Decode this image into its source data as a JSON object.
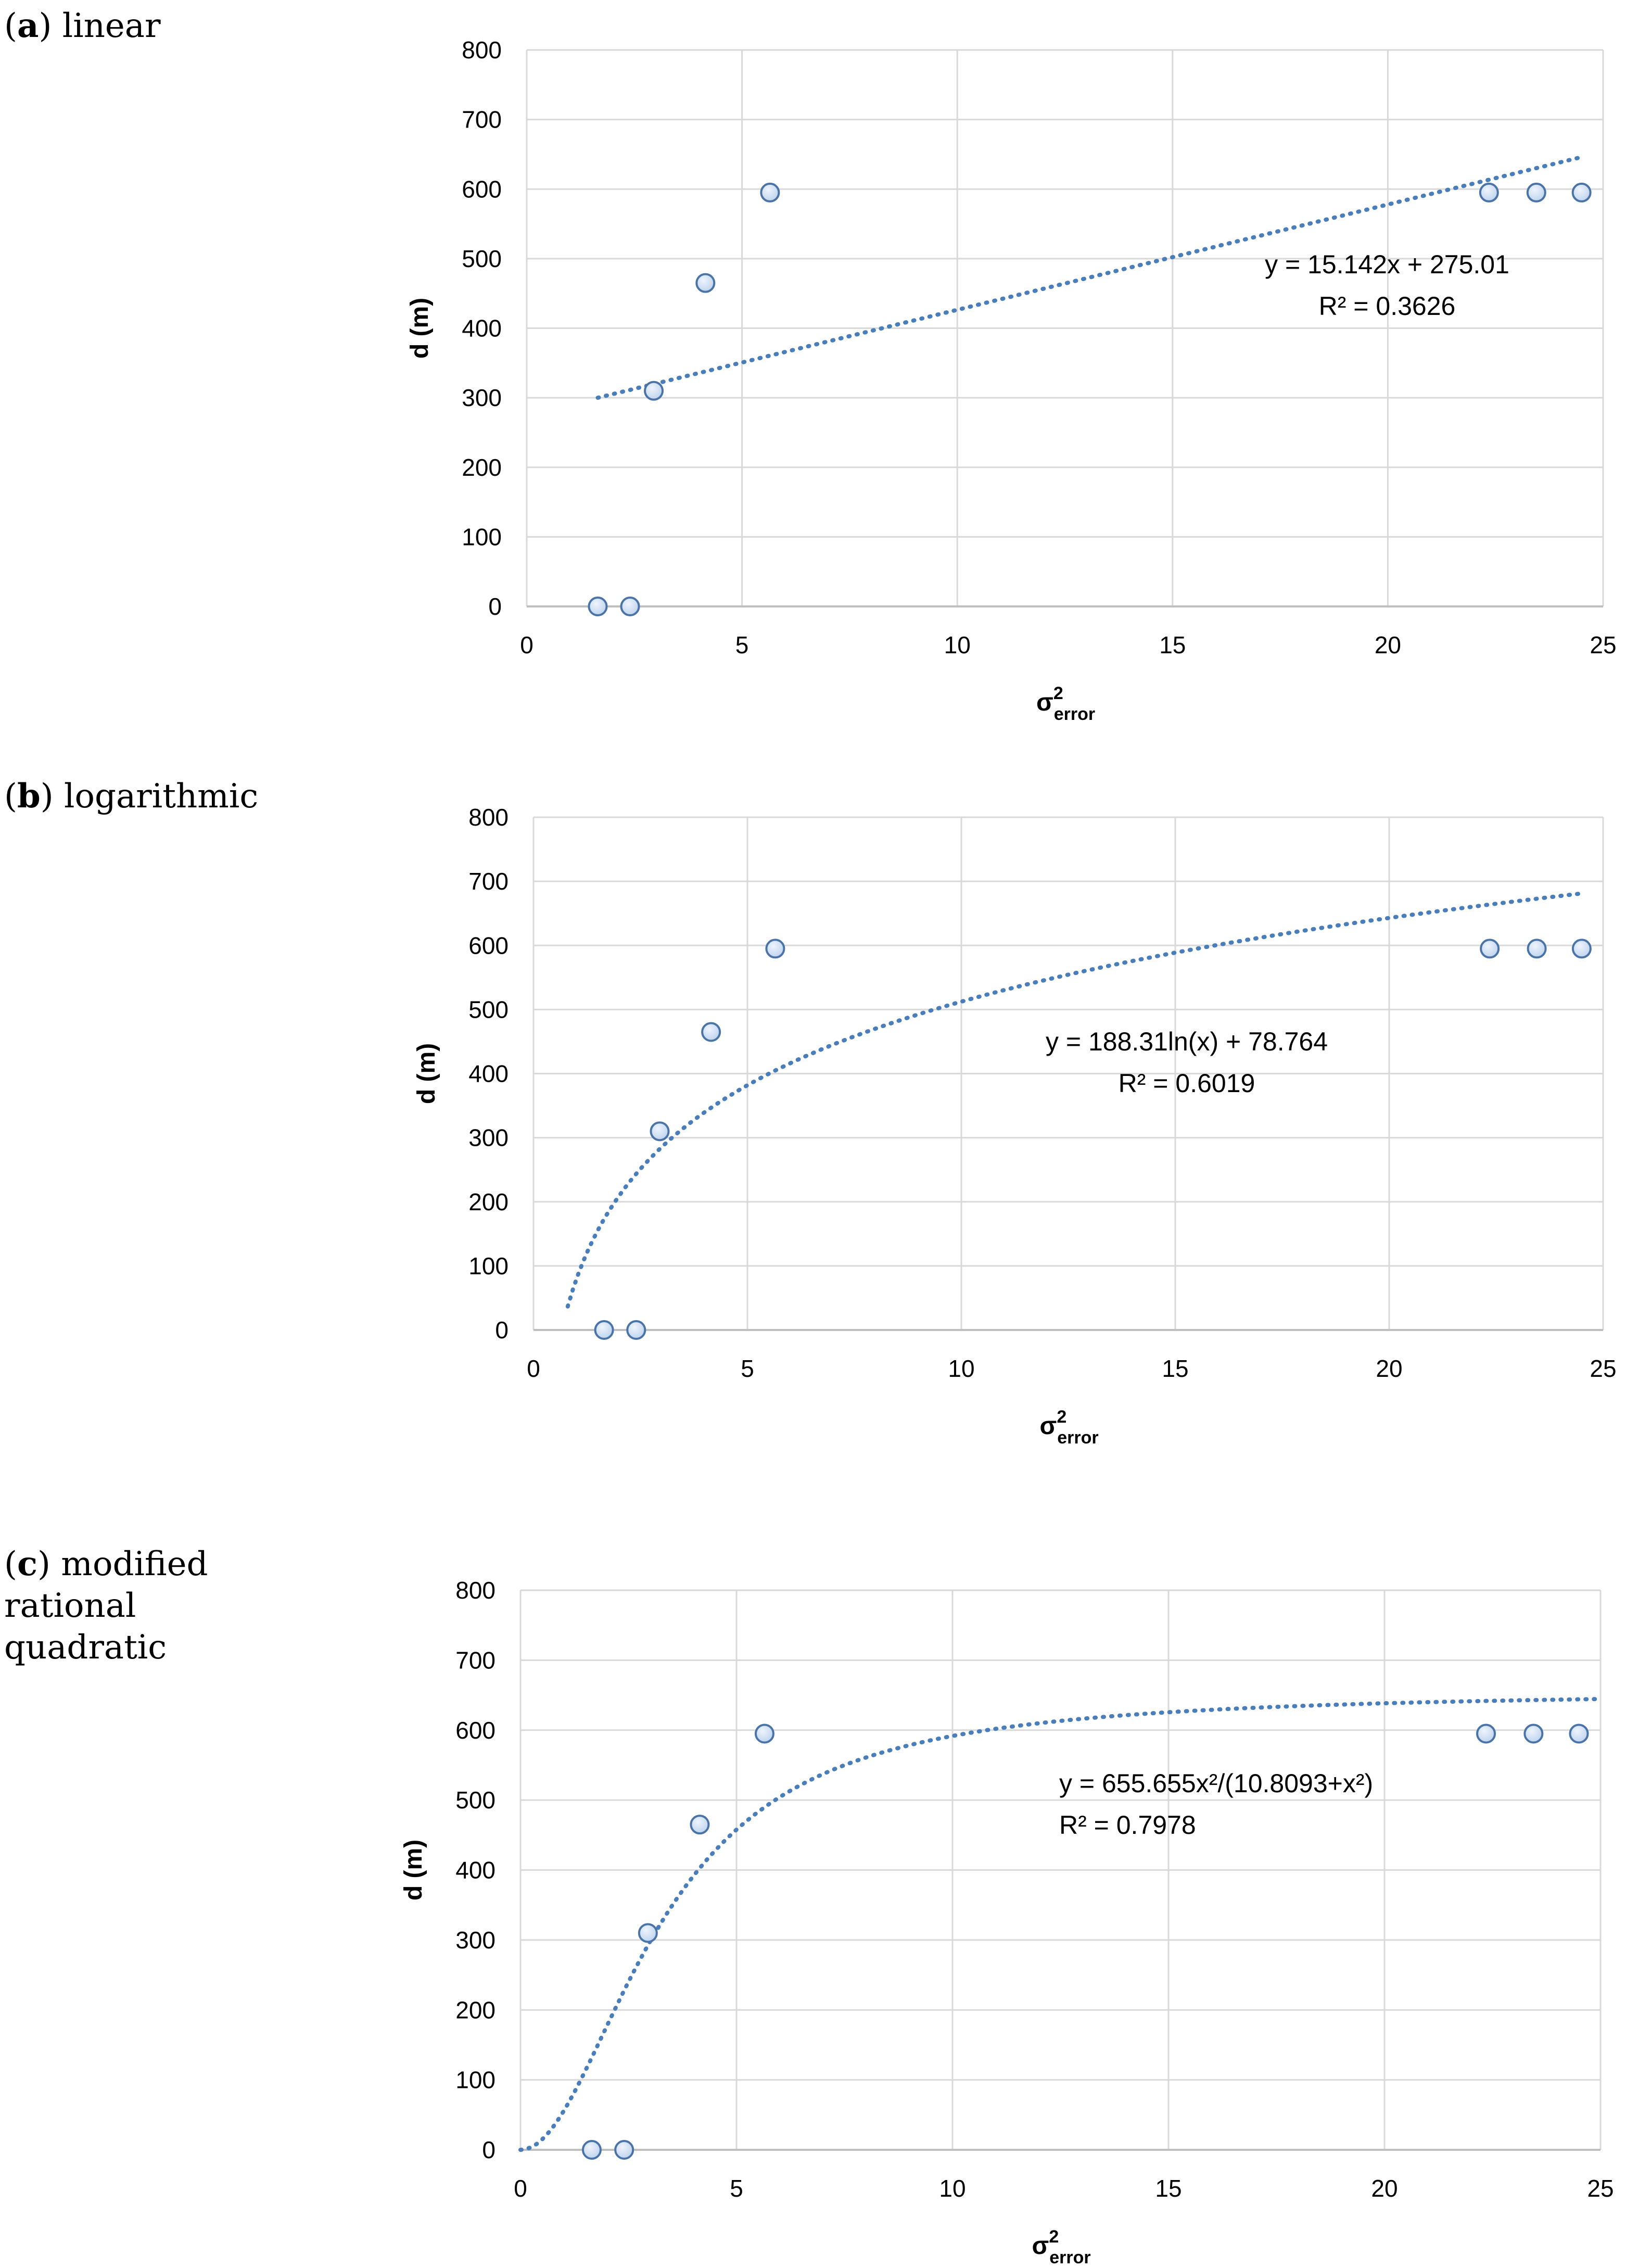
{
  "colors": {
    "grid": "#d9d9d9",
    "axis": "#bfbfbf",
    "trend": "#4a7eba",
    "marker_fill": "#bcd2ee",
    "marker_stroke": "#4a74a8"
  },
  "chart_data": [
    {
      "type": "scatter",
      "panel_letter": "a",
      "panel_title": " linear",
      "xlabel": "σ",
      "xlabel_sup": "2",
      "xlabel_sub": "error",
      "ylabel": "d (m)",
      "xlim": [
        0,
        25
      ],
      "ylim": [
        0,
        800
      ],
      "xticks": [
        0,
        5,
        10,
        15,
        20,
        25
      ],
      "yticks": [
        0,
        100,
        200,
        300,
        400,
        500,
        600,
        700,
        800
      ],
      "points": [
        {
          "x": 1.65,
          "y": 0
        },
        {
          "x": 2.4,
          "y": 0
        },
        {
          "x": 2.95,
          "y": 310
        },
        {
          "x": 4.15,
          "y": 465
        },
        {
          "x": 5.65,
          "y": 595
        },
        {
          "x": 22.35,
          "y": 595
        },
        {
          "x": 23.45,
          "y": 595
        },
        {
          "x": 24.5,
          "y": 595
        }
      ],
      "trendline": {
        "model": "linear",
        "a": 15.142,
        "b": 275.01,
        "x_range": [
          1.65,
          24.5
        ]
      },
      "equation": [
        "y = 15.142x + 275.01",
        "R² = 0.3626"
      ]
    },
    {
      "type": "scatter",
      "panel_letter": "b",
      "panel_title": " logarithmic",
      "xlabel": "σ",
      "xlabel_sup": "2",
      "xlabel_sub": "error",
      "ylabel": "d (m)",
      "xlim": [
        0,
        25
      ],
      "ylim": [
        0,
        800
      ],
      "xticks": [
        0,
        5,
        10,
        15,
        20,
        25
      ],
      "yticks": [
        0,
        100,
        200,
        300,
        400,
        500,
        600,
        700,
        800
      ],
      "points": [
        {
          "x": 1.65,
          "y": 0
        },
        {
          "x": 2.4,
          "y": 0
        },
        {
          "x": 2.95,
          "y": 310
        },
        {
          "x": 4.15,
          "y": 465
        },
        {
          "x": 5.65,
          "y": 595
        },
        {
          "x": 22.35,
          "y": 595
        },
        {
          "x": 23.45,
          "y": 595
        },
        {
          "x": 24.5,
          "y": 595
        }
      ],
      "trendline": {
        "model": "log",
        "a": 188.31,
        "b": 78.764,
        "x_range": [
          0.8,
          24.5
        ]
      },
      "equation": [
        "y = 188.31ln(x) + 78.764",
        "R² = 0.6019"
      ]
    },
    {
      "type": "scatter",
      "panel_letter": "c",
      "panel_title": " modified\nrational\nquadratic",
      "xlabel": "σ",
      "xlabel_sup": "2",
      "xlabel_sub": "error",
      "ylabel": "d (m)",
      "xlim": [
        0,
        25
      ],
      "ylim": [
        0,
        800
      ],
      "xticks": [
        0,
        5,
        10,
        15,
        20,
        25
      ],
      "yticks": [
        0,
        100,
        200,
        300,
        400,
        500,
        600,
        700,
        800
      ],
      "points": [
        {
          "x": 1.65,
          "y": 0
        },
        {
          "x": 2.4,
          "y": 0
        },
        {
          "x": 2.95,
          "y": 310
        },
        {
          "x": 4.15,
          "y": 465
        },
        {
          "x": 5.65,
          "y": 595
        },
        {
          "x": 22.35,
          "y": 595
        },
        {
          "x": 23.45,
          "y": 595
        },
        {
          "x": 24.5,
          "y": 595
        }
      ],
      "trendline": {
        "model": "rational",
        "a": 655.655,
        "c": 10.8093,
        "x_range": [
          0,
          25
        ]
      },
      "equation": [
        "y = 655.655x²/(10.8093+x²)",
        "R² = 0.7978"
      ]
    }
  ]
}
